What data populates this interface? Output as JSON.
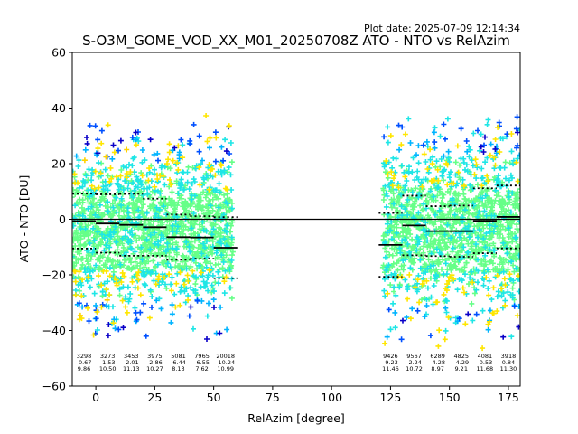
{
  "plot_date": "Plot date: 2025-07-09 12:14:34",
  "chart_data": {
    "type": "scatter",
    "title": "S-O3M_GOME_VOD_XX_M01_20250708Z ATO - NTO vs RelAzim",
    "xlabel": "RelAzim [degree]",
    "ylabel": "ATO - NTO [DU]",
    "xlim": [
      -10,
      180
    ],
    "ylim": [
      -60,
      60
    ],
    "xticks": [
      "0",
      "25",
      "50",
      "75",
      "100",
      "125",
      "150",
      "175"
    ],
    "xtick_values": [
      0,
      25,
      50,
      75,
      100,
      125,
      150,
      175
    ],
    "yticks": [
      "−60",
      "−40",
      "−20",
      "0",
      "20",
      "40",
      "60"
    ],
    "ytick_values": [
      -60,
      -40,
      -20,
      0,
      20,
      40,
      60
    ],
    "zero_line": 0,
    "point_colors": [
      "#66ff88",
      "#1ee6e6",
      "#00b4ff",
      "#0050ff",
      "#0a00c8",
      "#ffe600",
      "#ffd200"
    ],
    "clusters": [
      {
        "xmin": -10,
        "xmax": 58,
        "ymin": -30,
        "ymax": 22
      },
      {
        "xmin": 122,
        "xmax": 180,
        "ymin": -32,
        "ymax": 24
      }
    ],
    "bins": [
      {
        "x0": -10,
        "x1": 0,
        "count": "3298",
        "mean": "-0.67",
        "std": "9.86",
        "mean_v": -0.67,
        "std_v": 9.86
      },
      {
        "x0": 0,
        "x1": 10,
        "count": "3273",
        "mean": "-1.53",
        "std": "10.50",
        "mean_v": -1.53,
        "std_v": 10.5
      },
      {
        "x0": 10,
        "x1": 20,
        "count": "3453",
        "mean": "-2.01",
        "std": "11.13",
        "mean_v": -2.01,
        "std_v": 11.13
      },
      {
        "x0": 20,
        "x1": 30,
        "count": "3975",
        "mean": "-2.86",
        "std": "10.27",
        "mean_v": -2.86,
        "std_v": 10.27
      },
      {
        "x0": 30,
        "x1": 40,
        "count": "5081",
        "mean": "-6.44",
        "std": "8.13",
        "mean_v": -6.44,
        "std_v": 8.13
      },
      {
        "x0": 40,
        "x1": 50,
        "count": "7965",
        "mean": "-6.55",
        "std": "7.62",
        "mean_v": -6.55,
        "std_v": 7.62
      },
      {
        "x0": 50,
        "x1": 60,
        "count": "20018",
        "mean": "-10.24",
        "std": "10.99",
        "mean_v": -10.24,
        "std_v": 10.99
      },
      {
        "x0": 120,
        "x1": 130,
        "count": "9426",
        "mean": "-9.23",
        "std": "11.46",
        "mean_v": -9.23,
        "std_v": 11.46
      },
      {
        "x0": 130,
        "x1": 140,
        "count": "9567",
        "mean": "-2.24",
        "std": "10.72",
        "mean_v": -2.24,
        "std_v": 10.72
      },
      {
        "x0": 140,
        "x1": 150,
        "count": "6289",
        "mean": "-4.28",
        "std": "8.97",
        "mean_v": -4.28,
        "std_v": 8.97
      },
      {
        "x0": 150,
        "x1": 160,
        "count": "4825",
        "mean": "-4.29",
        "std": "9.21",
        "mean_v": -4.29,
        "std_v": 9.21
      },
      {
        "x0": 160,
        "x1": 170,
        "count": "4081",
        "mean": "-0.53",
        "std": "11.68",
        "mean_v": -0.53,
        "std_v": 11.68
      },
      {
        "x0": 170,
        "x1": 180,
        "count": "3918",
        "mean": "0.84",
        "std": "11.30",
        "mean_v": 0.84,
        "std_v": 11.3
      }
    ]
  }
}
